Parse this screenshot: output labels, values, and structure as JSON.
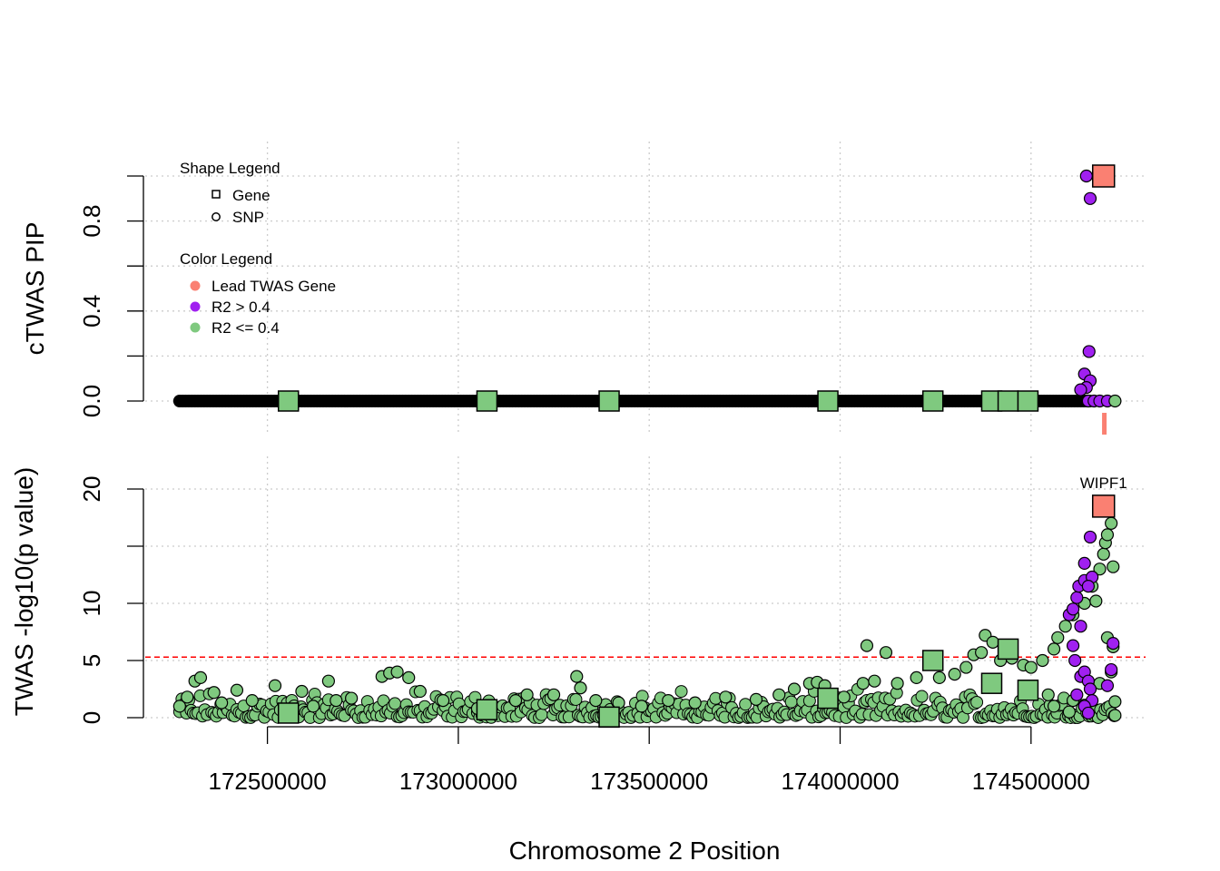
{
  "chart_data": [
    {
      "panel": "top",
      "type": "scatter",
      "ylabel": "cTWAS PIP",
      "ylim": [
        0,
        1
      ],
      "y_ticks": [
        "0.0",
        "0.4",
        "0.8"
      ],
      "y_minor_ticks": [
        0.0,
        0.2,
        0.4,
        0.6,
        0.8,
        1.0
      ],
      "xlim": [
        172180000,
        174800000
      ],
      "grid": true,
      "legend": {
        "placement": "top-left",
        "shape_title": "Shape Legend",
        "shape_items": [
          {
            "label": "Gene",
            "shape": "square"
          },
          {
            "label": "SNP",
            "shape": "circle"
          }
        ],
        "color_title": "Color Legend",
        "color_items": [
          {
            "label": "Lead TWAS Gene",
            "color": "#FA8072"
          },
          {
            "label": "R2 > 0.4",
            "color": "#A020F0"
          },
          {
            "label": "R2 <= 0.4",
            "color": "#7FC97F"
          }
        ]
      },
      "snp_baseline": {
        "x_start": 172270000,
        "x_end": 174660000,
        "y": 0.0,
        "color": "#000000"
      },
      "genes": [
        {
          "x": 172555000,
          "y": 0.0,
          "color": "#7FC97F"
        },
        {
          "x": 173075000,
          "y": 0.0,
          "color": "#7FC97F"
        },
        {
          "x": 173395000,
          "y": 0.0,
          "color": "#7FC97F"
        },
        {
          "x": 173968000,
          "y": 0.0,
          "color": "#7FC97F"
        },
        {
          "x": 174243000,
          "y": 0.0,
          "color": "#7FC97F"
        },
        {
          "x": 174397000,
          "y": 0.0,
          "color": "#7FC97F"
        },
        {
          "x": 174440000,
          "y": 0.0,
          "color": "#7FC97F"
        },
        {
          "x": 174492000,
          "y": 0.0,
          "color": "#7FC97F"
        },
        {
          "x": 174690000,
          "y": 1.0,
          "color": "#FA8072"
        }
      ],
      "snps": [
        {
          "x": 174645000,
          "y": 1.0,
          "color": "#A020F0"
        },
        {
          "x": 174655000,
          "y": 0.9,
          "color": "#A020F0"
        },
        {
          "x": 174652000,
          "y": 0.22,
          "color": "#A020F0"
        },
        {
          "x": 174640000,
          "y": 0.12,
          "color": "#A020F0"
        },
        {
          "x": 174655000,
          "y": 0.09,
          "color": "#A020F0"
        },
        {
          "x": 174645000,
          "y": 0.06,
          "color": "#A020F0"
        },
        {
          "x": 174630000,
          "y": 0.05,
          "color": "#A020F0"
        },
        {
          "x": 174650000,
          "y": 0.0,
          "color": "#A020F0"
        },
        {
          "x": 174665000,
          "y": 0.0,
          "color": "#A020F0"
        },
        {
          "x": 174680000,
          "y": 0.0,
          "color": "#A020F0"
        },
        {
          "x": 174700000,
          "y": 0.0,
          "color": "#A020F0"
        },
        {
          "x": 174720000,
          "y": 0.0,
          "color": "#7FC97F"
        }
      ],
      "lead_gene_marker": {
        "x": 174692000,
        "color": "#FA8072"
      }
    },
    {
      "panel": "bottom",
      "type": "scatter",
      "ylabel": "TWAS -log10(p value)",
      "xlabel": "Chromosome 2 Position",
      "ylim": [
        0,
        20
      ],
      "y_ticks": [
        "0",
        "5",
        "10",
        "20"
      ],
      "y_minor_ticks": [
        0,
        5,
        10,
        15,
        20
      ],
      "x_ticks": [
        "172500000",
        "173000000",
        "173500000",
        "174000000",
        "174500000"
      ],
      "xlim": [
        172180000,
        174800000
      ],
      "grid": true,
      "threshold": {
        "y": 5.3,
        "color": "#FF0000",
        "style": "dashed"
      },
      "genes": [
        {
          "x": 172555000,
          "y": 0.4,
          "color": "#7FC97F"
        },
        {
          "x": 173075000,
          "y": 0.7,
          "color": "#7FC97F"
        },
        {
          "x": 173395000,
          "y": 0.05,
          "color": "#7FC97F"
        },
        {
          "x": 173968000,
          "y": 1.7,
          "color": "#7FC97F"
        },
        {
          "x": 174243000,
          "y": 5.0,
          "color": "#7FC97F"
        },
        {
          "x": 174397000,
          "y": 3.0,
          "color": "#7FC97F"
        },
        {
          "x": 174440000,
          "y": 6.0,
          "color": "#7FC97F"
        },
        {
          "x": 174492000,
          "y": 2.4,
          "color": "#7FC97F"
        },
        {
          "x": 174690000,
          "y": 18.5,
          "label": "WIPF1",
          "color": "#FA8072"
        }
      ],
      "snp_series": [
        {
          "color": "#7FC97F",
          "points": [
            [
              172270000,
              1.0
            ],
            [
              172290000,
              1.8
            ],
            [
              172310000,
              3.2
            ],
            [
              172325000,
              3.5
            ],
            [
              172360000,
              2.2
            ],
            [
              172380000,
              1.3
            ],
            [
              172420000,
              2.4
            ],
            [
              172460000,
              1.5
            ],
            [
              172520000,
              2.8
            ],
            [
              172590000,
              2.3
            ],
            [
              172620000,
              1.0
            ],
            [
              172660000,
              3.2
            ],
            [
              172680000,
              1.5
            ],
            [
              172720000,
              1.7
            ],
            [
              172800000,
              3.6
            ],
            [
              172820000,
              3.9
            ],
            [
              172840000,
              4.0
            ],
            [
              172870000,
              3.5
            ],
            [
              172900000,
              2.3
            ],
            [
              172960000,
              1.5
            ],
            [
              173050000,
              0.8
            ],
            [
              173150000,
              1.5
            ],
            [
              173180000,
              2.0
            ],
            [
              173250000,
              2.0
            ],
            [
              173310000,
              3.6
            ],
            [
              173320000,
              2.6
            ],
            [
              173360000,
              1.5
            ],
            [
              173420000,
              1.3
            ],
            [
              173480000,
              1.0
            ],
            [
              173550000,
              1.5
            ],
            [
              173620000,
              1.3
            ],
            [
              173700000,
              1.8
            ],
            [
              173780000,
              1.6
            ],
            [
              173840000,
              2.0
            ],
            [
              173880000,
              2.5
            ],
            [
              173920000,
              3.0
            ],
            [
              173940000,
              3.1
            ],
            [
              173960000,
              2.8
            ],
            [
              174010000,
              1.8
            ],
            [
              174060000,
              3.0
            ],
            [
              174070000,
              6.3
            ],
            [
              174090000,
              3.2
            ],
            [
              174120000,
              5.7
            ],
            [
              174150000,
              3.0
            ],
            [
              174200000,
              3.5
            ],
            [
              174260000,
              3.5
            ],
            [
              174300000,
              3.8
            ],
            [
              174330000,
              4.4
            ],
            [
              174350000,
              5.5
            ],
            [
              174370000,
              5.7
            ],
            [
              174380000,
              7.2
            ],
            [
              174400000,
              6.6
            ],
            [
              174420000,
              5.0
            ],
            [
              174450000,
              5.2
            ],
            [
              174480000,
              4.6
            ],
            [
              174500000,
              4.4
            ],
            [
              174530000,
              5.0
            ],
            [
              174560000,
              6.0
            ],
            [
              174570000,
              7.0
            ],
            [
              174590000,
              8.0
            ],
            [
              174610000,
              9.0
            ],
            [
              174640000,
              10.0
            ],
            [
              174660000,
              11.5
            ],
            [
              174670000,
              10.2
            ],
            [
              174680000,
              13.0
            ],
            [
              174690000,
              14.3
            ],
            [
              174695000,
              15.3
            ],
            [
              174700000,
              16.0
            ],
            [
              174710000,
              17.0
            ],
            [
              174715000,
              13.2
            ],
            [
              174700000,
              7.0
            ],
            [
              174715000,
              6.2
            ],
            [
              174710000,
              4.0
            ],
            [
              174720000,
              1.4
            ],
            [
              174720000,
              0.2
            ],
            [
              174680000,
              3.0
            ],
            [
              174610000,
              1.5
            ],
            [
              174600000,
              0.5
            ],
            [
              174560000,
              1.0
            ],
            [
              174545000,
              2.0
            ]
          ]
        },
        {
          "color": "#A020F0",
          "points": [
            [
              174600000,
              9.0
            ],
            [
              174610000,
              9.5
            ],
            [
              174620000,
              10.5
            ],
            [
              174625000,
              11.5
            ],
            [
              174640000,
              12.0
            ],
            [
              174640000,
              13.5
            ],
            [
              174655000,
              15.8
            ],
            [
              174660000,
              12.3
            ],
            [
              174650000,
              11.5
            ],
            [
              174630000,
              8.0
            ],
            [
              174610000,
              6.3
            ],
            [
              174615000,
              5.0
            ],
            [
              174630000,
              3.6
            ],
            [
              174640000,
              4.0
            ],
            [
              174650000,
              3.2
            ],
            [
              174655000,
              2.5
            ],
            [
              174660000,
              1.5
            ],
            [
              174640000,
              1.0
            ],
            [
              174650000,
              0.4
            ],
            [
              174700000,
              2.8
            ],
            [
              174710000,
              4.2
            ],
            [
              174715000,
              6.5
            ],
            [
              174620000,
              2.0
            ]
          ]
        }
      ]
    }
  ]
}
